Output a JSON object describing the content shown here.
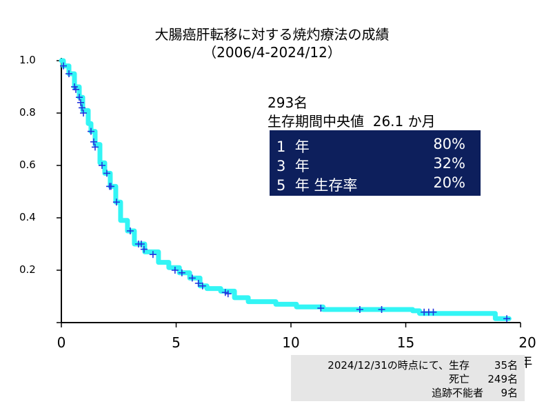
{
  "chart_data": {
    "type": "line",
    "title": "大腸癌肝転移に対する焼灼療法の成績",
    "subtitle": "（2006/4-2024/12）",
    "xlabel": "",
    "ylabel": "",
    "xlim": [
      0,
      20
    ],
    "ylim": [
      0,
      1.0
    ],
    "x_ticks": [
      {
        "v": 0,
        "label": "0"
      },
      {
        "v": 5,
        "label": "5"
      },
      {
        "v": 10,
        "label": "10"
      },
      {
        "v": 15,
        "label": "15"
      },
      {
        "v": 20,
        "label": "20年"
      }
    ],
    "y_ticks": [
      {
        "v": 1.0,
        "label": "1.0"
      },
      {
        "v": 0.8,
        "label": "0.8"
      },
      {
        "v": 0.6,
        "label": "0.6"
      },
      {
        "v": 0.4,
        "label": "0.4"
      },
      {
        "v": 0.2,
        "label": "0.2"
      }
    ],
    "grid": false,
    "line_color": "#33f5f5",
    "censor_color": "#2233dd",
    "series": [
      {
        "x": [
          0,
          0.09,
          0.33,
          0.57,
          0.78,
          0.93,
          1.17,
          1.29,
          1.47,
          1.68,
          1.89,
          2.13,
          2.37,
          2.58,
          2.88,
          3.18,
          3.63,
          4.23,
          4.68,
          5.14,
          5.59,
          6.04,
          6.34,
          6.94,
          7.54,
          8.14,
          9.34,
          10.24,
          11.4,
          15.3,
          15.6,
          18.9,
          19.5
        ],
        "y": [
          1.0,
          0.98,
          0.95,
          0.9,
          0.86,
          0.81,
          0.76,
          0.73,
          0.68,
          0.61,
          0.57,
          0.52,
          0.46,
          0.39,
          0.35,
          0.3,
          0.27,
          0.23,
          0.21,
          0.19,
          0.17,
          0.14,
          0.13,
          0.12,
          0.095,
          0.08,
          0.07,
          0.06,
          0.05,
          0.045,
          0.035,
          0.015,
          0.015
        ]
      }
    ],
    "censored": {
      "x": [
        0.09,
        0.33,
        0.57,
        0.63,
        0.78,
        0.84,
        0.9,
        0.96,
        1.29,
        1.41,
        1.47,
        1.77,
        1.98,
        2.1,
        2.16,
        2.4,
        3.0,
        3.36,
        3.48,
        3.6,
        3.99,
        4.95,
        5.25,
        5.7,
        5.97,
        6.15,
        7.14,
        7.26,
        11.3,
        13.0,
        13.95,
        15.8,
        16.0,
        16.2,
        19.4
      ],
      "y": [
        0.98,
        0.95,
        0.9,
        0.89,
        0.86,
        0.84,
        0.82,
        0.8,
        0.73,
        0.69,
        0.67,
        0.6,
        0.57,
        0.52,
        0.52,
        0.46,
        0.35,
        0.3,
        0.3,
        0.28,
        0.26,
        0.2,
        0.19,
        0.17,
        0.15,
        0.14,
        0.115,
        0.11,
        0.055,
        0.05,
        0.05,
        0.04,
        0.04,
        0.04,
        0.015
      ]
    }
  },
  "summary": {
    "patients": "293名",
    "median_label": "生存期間中央値",
    "median_value": "26.1 か月",
    "rates_bg": "#0d1f5c",
    "rates": [
      {
        "label": "1  年",
        "value": "80%"
      },
      {
        "label": "3  年",
        "value": "32%"
      },
      {
        "label": "5  年 生存率",
        "value": "20%"
      }
    ]
  },
  "footnote": {
    "rows": [
      {
        "label": "2024/12/31の時点にて、生存",
        "value": "35名"
      },
      {
        "label": "死亡",
        "value": "249名"
      },
      {
        "label": "追跡不能者",
        "value": "9名"
      }
    ]
  }
}
